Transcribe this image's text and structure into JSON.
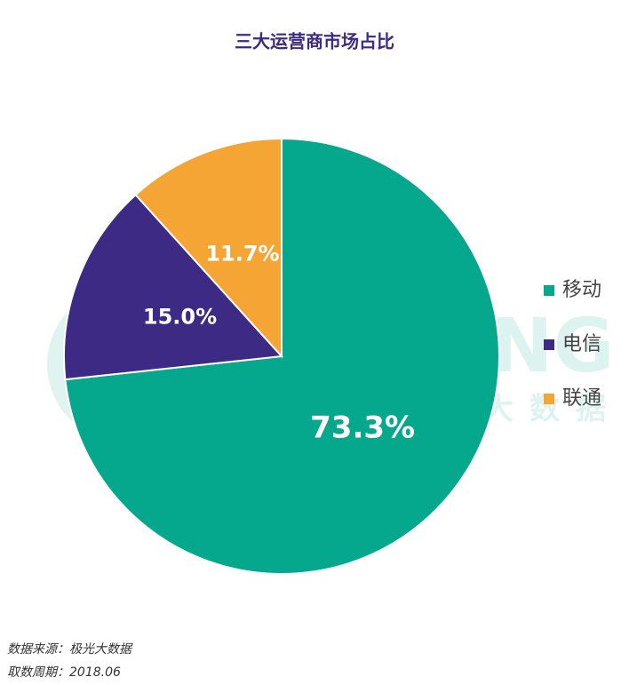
{
  "chart_data": {
    "type": "pie",
    "title": "三大运营商市场占比",
    "categories": [
      "移动",
      "电信",
      "联通"
    ],
    "values": [
      73.3,
      15.0,
      11.7
    ],
    "value_labels": [
      "73.3%",
      "15.0%",
      "11.7%"
    ],
    "colors": [
      "#05a88d",
      "#3c2a85",
      "#f4a534"
    ],
    "legend": "right",
    "watermark": "JIGUANG",
    "watermark_sub": "极光大数据",
    "source": "数据来源：极光大数据",
    "period": "取数周期：2018.06"
  }
}
